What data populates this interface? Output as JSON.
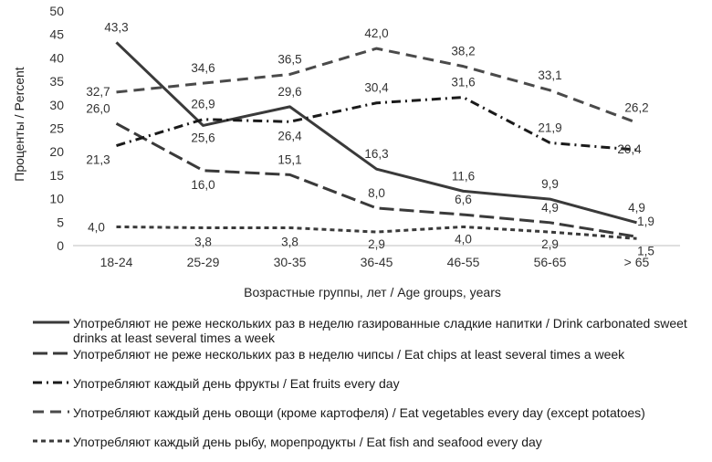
{
  "chart_data": {
    "type": "line",
    "categories": [
      "18-24",
      "25-29",
      "30-35",
      "36-45",
      "46-55",
      "56-65",
      "> 65"
    ],
    "ylabel": "Проценты / Percent",
    "xlabel": "Возрастные группы, лет / Age groups, years",
    "ylim": [
      0,
      50
    ],
    "yticks": [
      "0",
      "5",
      "10",
      "15",
      "20",
      "25",
      "30",
      "35",
      "40",
      "45",
      "50"
    ],
    "grid": false,
    "legend_position": "bottom",
    "series": [
      {
        "name": "Употребляют не реже нескольких раз в неделю газированные сладкие напитки / Drink carbonated sweet drinks at least several times a week",
        "values": [
          43.3,
          25.6,
          29.6,
          16.3,
          11.6,
          9.9,
          4.9
        ],
        "labels": [
          "43,3",
          "25,6",
          "29,6",
          "16,3",
          "11,6",
          "9,9",
          "4,9"
        ],
        "style": "solid",
        "color": "#3a3a3a"
      },
      {
        "name": "Употребляют не реже нескольких раз в неделю чипсы / Eat chips at least several times a week",
        "values": [
          26.0,
          16.0,
          15.1,
          8.0,
          6.6,
          4.9,
          1.9
        ],
        "labels": [
          "26,0",
          "16,0",
          "15,1",
          "8,0",
          "6,6",
          "4,9",
          "1,9"
        ],
        "style": "longdash",
        "color": "#3a3a3a"
      },
      {
        "name": "Употребляют каждый день фрукты / Eat fruits every day",
        "values": [
          21.3,
          26.9,
          26.4,
          30.4,
          31.6,
          21.9,
          20.4
        ],
        "labels": [
          "21,3",
          "26,9",
          "26,4",
          "30,4",
          "31,6",
          "21,9",
          "20,4"
        ],
        "style": "dashdot",
        "color": "#1a1a1a"
      },
      {
        "name": "Употребляют каждый день овощи (кроме картофеля) / Eat vegetables every day (except potatoes)",
        "values": [
          32.7,
          34.6,
          36.5,
          42.0,
          38.2,
          33.1,
          26.2
        ],
        "labels": [
          "32,7",
          "34,6",
          "36,5",
          "42,0",
          "38,2",
          "33,1",
          "26,2"
        ],
        "style": "dash",
        "color": "#4a4a4a"
      },
      {
        "name": "Употребляют каждый день рыбу, морепродукты / Eat fish and seafood every day",
        "values": [
          4.0,
          3.8,
          3.8,
          2.9,
          4.0,
          2.9,
          1.5
        ],
        "labels": [
          "4,0",
          "3,8",
          "3,8",
          "2,9",
          "4,0",
          "2,9",
          "1,5"
        ],
        "style": "shortdash",
        "color": "#3a3a3a"
      }
    ]
  }
}
